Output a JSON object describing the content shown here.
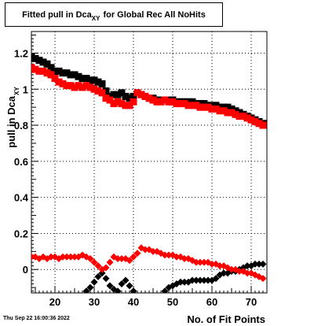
{
  "title": {
    "prefix": "Fitted pull in Dca",
    "subscript": "XY",
    "suffix": "for Global Rec All NoHits"
  },
  "timestamp": "Thu Sep 22 16:00:36 2022",
  "chart_data": {
    "type": "scatter",
    "title": "Fitted pull in Dca_XY for Global Rec All NoHits",
    "xlabel": "No. of Fit Points",
    "ylabel_main": "pull in Dca",
    "ylabel_sub": "XY",
    "xlim": [
      14,
      74
    ],
    "ylim": [
      -0.13,
      1.32
    ],
    "x_ticks": [
      20,
      30,
      40,
      50,
      60,
      70
    ],
    "y_ticks": [
      0,
      0.2,
      0.4,
      0.6,
      0.8,
      1,
      1.2
    ],
    "y_tick_labels": [
      "0",
      "0.2",
      "0.4",
      "0.6",
      "0.8",
      "1",
      "1.2"
    ],
    "grid": true,
    "legend": "none",
    "series": [
      {
        "color": "#000000",
        "marker": "square",
        "x": [
          14,
          15,
          16,
          17,
          18,
          19,
          20,
          21,
          22,
          23,
          24,
          25,
          26,
          27,
          28,
          29,
          30,
          31,
          32,
          33,
          34,
          35,
          36,
          37,
          38,
          39,
          40,
          41,
          42,
          43,
          44,
          45,
          46,
          47,
          48,
          49,
          50,
          51,
          52,
          53,
          54,
          55,
          56,
          57,
          58,
          59,
          60,
          61,
          62,
          63,
          64,
          65,
          66,
          67,
          68,
          69,
          70,
          71,
          72,
          73
        ],
        "y": [
          1.18,
          1.17,
          1.16,
          1.15,
          1.14,
          1.12,
          1.1,
          1.1,
          1.09,
          1.09,
          1.08,
          1.08,
          1.07,
          1.06,
          1.06,
          1.05,
          1.05,
          1.04,
          1.03,
          0.99,
          0.96,
          0.97,
          0.97,
          0.98,
          0.96,
          0.95,
          0.96,
          0.98,
          0.97,
          0.96,
          0.95,
          0.95,
          0.94,
          0.94,
          0.94,
          0.94,
          0.94,
          0.93,
          0.93,
          0.93,
          0.93,
          0.93,
          0.92,
          0.92,
          0.92,
          0.91,
          0.91,
          0.91,
          0.9,
          0.9,
          0.9,
          0.89,
          0.88,
          0.87,
          0.86,
          0.85,
          0.84,
          0.83,
          0.82,
          0.81
        ]
      },
      {
        "color": "#ff0000",
        "marker": "square",
        "x": [
          14,
          15,
          16,
          17,
          18,
          19,
          20,
          21,
          22,
          23,
          24,
          25,
          26,
          27,
          28,
          29,
          30,
          31,
          32,
          33,
          34,
          35,
          36,
          37,
          38,
          39,
          40,
          41,
          42,
          43,
          44,
          45,
          46,
          47,
          48,
          49,
          50,
          51,
          52,
          53,
          54,
          55,
          56,
          57,
          58,
          59,
          60,
          61,
          62,
          63,
          64,
          65,
          66,
          67,
          68,
          69,
          70,
          71,
          72,
          73
        ],
        "y": [
          1.12,
          1.11,
          1.1,
          1.1,
          1.09,
          1.08,
          1.06,
          1.04,
          1.03,
          1.02,
          1.02,
          1.01,
          1.02,
          1.01,
          1.02,
          1.01,
          1.0,
          0.99,
          0.98,
          0.95,
          0.94,
          0.92,
          0.93,
          0.92,
          0.91,
          0.91,
          0.93,
          0.98,
          0.97,
          0.96,
          0.95,
          0.94,
          0.93,
          0.93,
          0.94,
          0.93,
          0.93,
          0.92,
          0.92,
          0.92,
          0.91,
          0.91,
          0.91,
          0.9,
          0.9,
          0.9,
          0.89,
          0.89,
          0.88,
          0.88,
          0.87,
          0.87,
          0.86,
          0.85,
          0.85,
          0.84,
          0.83,
          0.82,
          0.81,
          0.8
        ]
      },
      {
        "color": "#000000",
        "marker": "diamond",
        "x": [
          28,
          29,
          30,
          31,
          32,
          33,
          34,
          35,
          36,
          37,
          38,
          39,
          40,
          48,
          49,
          50,
          51,
          52,
          53,
          54,
          55,
          56,
          57,
          58,
          59,
          60,
          61,
          62,
          63,
          64,
          65,
          66,
          67,
          68,
          69,
          70,
          71,
          72,
          73
        ],
        "y": [
          -0.12,
          -0.1,
          -0.07,
          -0.04,
          -0.02,
          -0.05,
          -0.09,
          -0.11,
          -0.12,
          -0.08,
          -0.06,
          -0.09,
          -0.12,
          -0.12,
          -0.1,
          -0.09,
          -0.08,
          -0.07,
          -0.07,
          -0.07,
          -0.06,
          -0.06,
          -0.06,
          -0.06,
          -0.06,
          -0.06,
          -0.05,
          -0.03,
          -0.02,
          -0.02,
          -0.01,
          -0.01,
          0.0,
          0.01,
          0.02,
          0.02,
          0.03,
          0.03,
          0.03
        ]
      },
      {
        "color": "#ff0000",
        "marker": "diamond",
        "x": [
          14,
          15,
          16,
          17,
          18,
          19,
          20,
          21,
          22,
          23,
          24,
          25,
          26,
          27,
          28,
          29,
          30,
          31,
          32,
          33,
          34,
          35,
          36,
          37,
          38,
          39,
          40,
          41,
          42,
          43,
          44,
          45,
          46,
          47,
          48,
          49,
          50,
          51,
          52,
          53,
          54,
          55,
          56,
          57,
          58,
          59,
          60,
          61,
          62,
          63,
          64,
          65,
          66,
          67,
          68,
          69,
          70,
          71,
          72,
          73
        ],
        "y": [
          0.07,
          0.07,
          0.06,
          0.07,
          0.06,
          0.07,
          0.07,
          0.06,
          0.07,
          0.07,
          0.07,
          0.07,
          0.07,
          0.08,
          0.07,
          0.06,
          0.04,
          0.02,
          0.0,
          0.01,
          0.04,
          0.07,
          0.06,
          0.06,
          0.06,
          0.05,
          0.07,
          0.09,
          0.12,
          0.11,
          0.11,
          0.1,
          0.1,
          0.09,
          0.08,
          0.08,
          0.08,
          0.07,
          0.07,
          0.06,
          0.06,
          0.05,
          0.04,
          0.04,
          0.04,
          0.04,
          0.03,
          0.03,
          0.02,
          0.02,
          0.01,
          0.0,
          0.0,
          -0.01,
          -0.01,
          -0.02,
          -0.02,
          -0.03,
          -0.04,
          -0.05
        ]
      }
    ]
  }
}
